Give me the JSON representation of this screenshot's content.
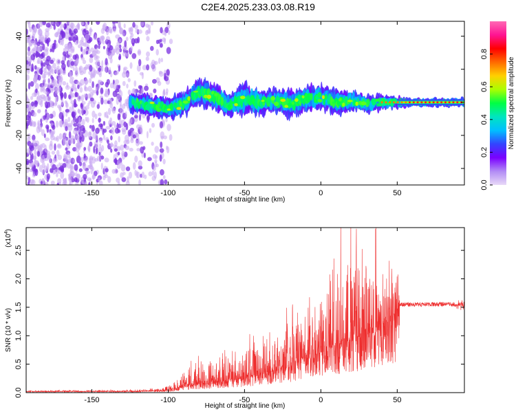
{
  "title": "C2E4.2025.233.03.08.R19",
  "colors": {
    "snr_line": "#ee2e2e",
    "scatter_base": "#7b2fe0",
    "colorbar_stops": [
      "#e8d9f7",
      "#b28cf5",
      "#7a00ff",
      "#3344ff",
      "#00bfff",
      "#00e5c0",
      "#00ff44",
      "#aaff00",
      "#ffd000",
      "#ff6a00",
      "#ff0000",
      "#ff1493",
      "#ff69b4"
    ]
  },
  "chart_data": [
    {
      "type": "heatmap",
      "title": "",
      "xlabel": "Height of straight line (km)",
      "ylabel": "Frequency (Hz)",
      "xlim": [
        -193,
        94
      ],
      "ylim": [
        -50,
        49
      ],
      "x_ticks": [
        "-150",
        "-100",
        "-50",
        "0",
        "50"
      ],
      "x_tick_values": [
        -150,
        -100,
        -50,
        0,
        50
      ],
      "y_ticks": [
        "-40",
        "-20",
        "0",
        "20",
        "40"
      ],
      "y_tick_values": [
        -40,
        -20,
        0,
        20,
        40
      ],
      "colorbar": {
        "label": "Normalized spectral amplitude",
        "range": [
          0,
          1
        ],
        "ticks": [
          "0.0",
          "0.2",
          "0.4",
          "0.6",
          "0.8"
        ],
        "tick_values": [
          0,
          0.2,
          0.4,
          0.6,
          0.8
        ]
      },
      "ridge": {
        "x": [
          -125,
          -110,
          -100,
          -90,
          -80,
          -70,
          -60,
          -50,
          -40,
          -30,
          -20,
          -10,
          0,
          10,
          20,
          30,
          40,
          50,
          60,
          70,
          80,
          94
        ],
        "y": [
          0,
          -2,
          -4,
          -1,
          6,
          4,
          -2,
          2,
          0,
          1,
          -1,
          2,
          3,
          0,
          1,
          -1,
          0,
          0,
          0,
          0,
          0,
          0
        ],
        "halfwidth": [
          5,
          6,
          6,
          7,
          8,
          8,
          7,
          9,
          8,
          7,
          8,
          8,
          7,
          7,
          6,
          5,
          4,
          3,
          2,
          2,
          2,
          2
        ]
      }
    },
    {
      "type": "line",
      "title": "",
      "xlabel": "Height of straight line (km)",
      "ylabel": "SNR (10 * v/v)",
      "y_multiplier": "(x10",
      "y_multiplier_exp": "4",
      "y_multiplier_close": ")",
      "xlim": [
        -193,
        94
      ],
      "ylim": [
        0,
        2.9
      ],
      "x_ticks": [
        "-150",
        "-100",
        "-50",
        "0",
        "50"
      ],
      "x_tick_values": [
        -150,
        -100,
        -50,
        0,
        50
      ],
      "y_ticks": [
        "0.0",
        "0.5",
        "1.0",
        "1.5",
        "2.0",
        "2.5"
      ],
      "y_tick_values": [
        0,
        0.5,
        1.0,
        1.5,
        2.0,
        2.5
      ],
      "envelope": {
        "x": [
          -193,
          -125,
          -105,
          -100,
          -95,
          -80,
          -65,
          -50,
          -40,
          -30,
          -20,
          -10,
          0,
          10,
          20,
          30,
          40,
          50,
          52,
          60,
          80,
          94
        ],
        "base": [
          0.02,
          0.02,
          0.03,
          0.04,
          0.07,
          0.15,
          0.18,
          0.25,
          0.3,
          0.38,
          0.45,
          0.6,
          0.7,
          0.8,
          0.9,
          1.0,
          1.1,
          1.3,
          1.55,
          1.55,
          1.55,
          1.55
        ],
        "peak": [
          0.04,
          0.05,
          0.08,
          0.15,
          0.25,
          0.6,
          0.65,
          0.85,
          1.05,
          0.95,
          1.35,
          1.95,
          2.15,
          2.6,
          2.75,
          2.85,
          2.45,
          2.1,
          1.62,
          1.62,
          1.62,
          1.62
        ]
      }
    }
  ]
}
